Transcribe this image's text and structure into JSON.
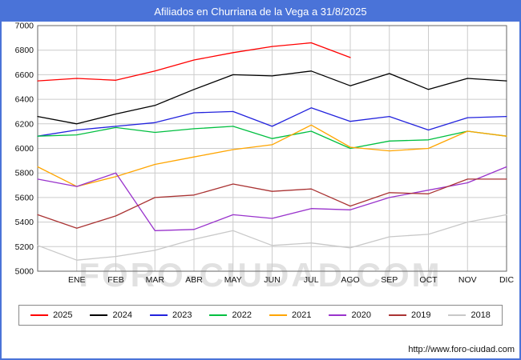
{
  "page": {
    "title": "Afiliados en Churriana de la Vega a 31/8/2025",
    "watermark": "FORO-CIUDAD.COM",
    "footer_url": "http://www.foro-ciudad.com"
  },
  "colors": {
    "titlebar": "#4a73d8",
    "page_border": "#4a73d8",
    "grid": "#cccccc",
    "plot_border": "#666666",
    "axis_text": "#111111"
  },
  "chart_data": {
    "type": "line",
    "title": "Afiliados en Churriana de la Vega a 31/8/2025",
    "categories": [
      "ENE",
      "FEB",
      "MAR",
      "ABR",
      "MAY",
      "JUN",
      "JUL",
      "AGO",
      "SEP",
      "OCT",
      "NOV",
      "DIC"
    ],
    "note": "Each series starts on the y-axis at the previous December value, then monthly values ENE-DIC. The 2025 series runs only through AGO.",
    "ylim": [
      5000,
      7000
    ],
    "y_ticks": [
      5000,
      5200,
      5400,
      5600,
      5800,
      6000,
      6200,
      6400,
      6600,
      6800,
      7000
    ],
    "grid": true,
    "legend_position": "bottom",
    "series": [
      {
        "name": "2025",
        "color": "#ff0000",
        "values": [
          6550,
          6570,
          6555,
          6630,
          6720,
          6780,
          6830,
          6860,
          6740
        ]
      },
      {
        "name": "2024",
        "color": "#000000",
        "values": [
          6260,
          6200,
          6280,
          6350,
          6480,
          6600,
          6590,
          6630,
          6510,
          6610,
          6480,
          6570,
          6550
        ]
      },
      {
        "name": "2023",
        "color": "#2222dd",
        "values": [
          6100,
          6150,
          6180,
          6210,
          6290,
          6300,
          6180,
          6330,
          6220,
          6260,
          6150,
          6250,
          6260
        ]
      },
      {
        "name": "2022",
        "color": "#00bf40",
        "values": [
          6100,
          6110,
          6170,
          6130,
          6160,
          6180,
          6080,
          6140,
          6000,
          6060,
          6070,
          6140,
          6100
        ]
      },
      {
        "name": "2021",
        "color": "#ffa500",
        "values": [
          5850,
          5690,
          5770,
          5870,
          5930,
          5990,
          6030,
          6190,
          6010,
          5980,
          6000,
          6140,
          6100
        ]
      },
      {
        "name": "2020",
        "color": "#9933cc",
        "values": [
          5750,
          5690,
          5800,
          5330,
          5340,
          5460,
          5430,
          5510,
          5500,
          5600,
          5660,
          5720,
          5850
        ]
      },
      {
        "name": "2019",
        "color": "#aa3333",
        "values": [
          5460,
          5350,
          5450,
          5600,
          5620,
          5710,
          5650,
          5670,
          5530,
          5640,
          5630,
          5750,
          5750
        ]
      },
      {
        "name": "2018",
        "color": "#c8c8c8",
        "values": [
          5210,
          5090,
          5120,
          5170,
          5260,
          5330,
          5210,
          5230,
          5190,
          5280,
          5300,
          5400,
          5460
        ]
      }
    ]
  }
}
